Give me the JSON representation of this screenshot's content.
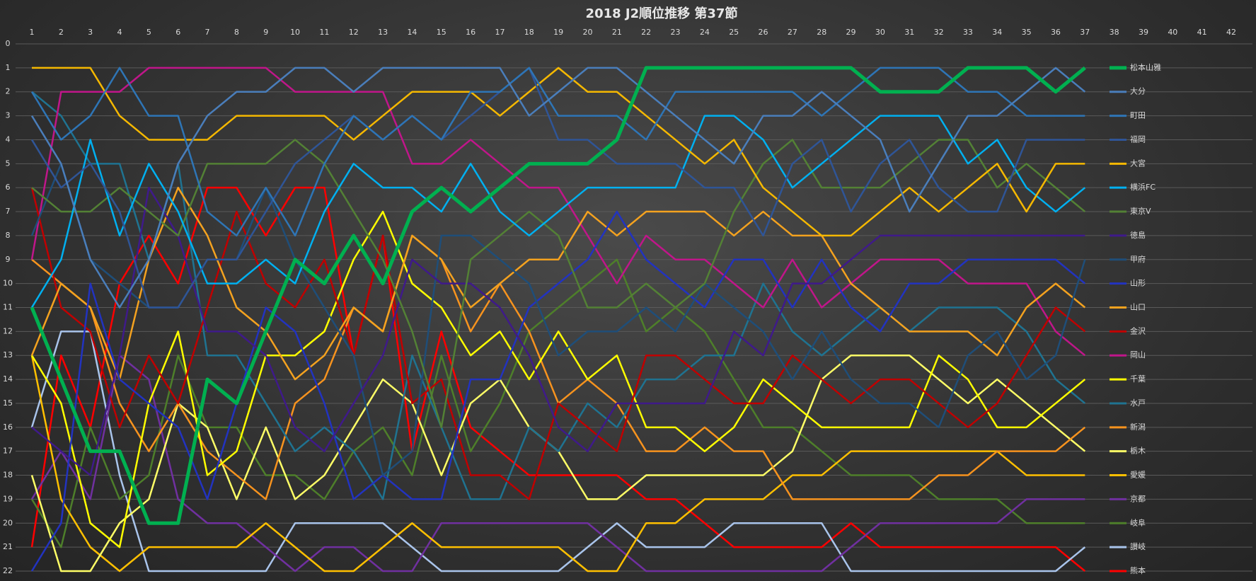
{
  "chart_data": {
    "type": "line",
    "title": "2018 J2順位推移 第37節",
    "x": [
      1,
      2,
      3,
      4,
      5,
      6,
      7,
      8,
      9,
      10,
      11,
      12,
      13,
      14,
      15,
      16,
      17,
      18,
      19,
      20,
      21,
      22,
      23,
      24,
      25,
      26,
      27,
      28,
      29,
      30,
      31,
      32,
      33,
      34,
      35,
      36,
      37
    ],
    "xlim": [
      1,
      42
    ],
    "xticks": [
      1,
      2,
      3,
      4,
      5,
      6,
      7,
      8,
      9,
      10,
      11,
      12,
      13,
      14,
      15,
      16,
      17,
      18,
      19,
      20,
      21,
      22,
      23,
      24,
      25,
      26,
      27,
      28,
      29,
      30,
      31,
      32,
      33,
      34,
      35,
      36,
      37,
      38,
      39,
      40,
      41,
      42
    ],
    "ylim": [
      0,
      22
    ],
    "yticks": [
      0,
      1,
      2,
      3,
      4,
      5,
      6,
      7,
      8,
      9,
      10,
      11,
      12,
      13,
      14,
      15,
      16,
      17,
      18,
      19,
      20,
      21,
      22
    ],
    "y_inverted": true,
    "grid": true,
    "series": [
      {
        "name": "松本山雅",
        "color": "#00b050",
        "width": 5,
        "values": [
          11,
          14,
          17,
          17,
          20,
          20,
          14,
          15,
          12,
          9,
          10,
          8,
          10,
          7,
          6,
          7,
          6,
          5,
          5,
          5,
          4,
          1,
          1,
          1,
          1,
          1,
          1,
          1,
          1,
          2,
          2,
          2,
          1,
          1,
          1,
          2,
          1
        ]
      },
      {
        "name": "大分",
        "color": "#4a7ebb",
        "width": 2.5,
        "values": [
          3,
          5,
          9,
          11,
          9,
          5,
          3,
          2,
          2,
          1,
          1,
          2,
          1,
          1,
          1,
          1,
          1,
          3,
          2,
          1,
          1,
          2,
          3,
          4,
          5,
          3,
          3,
          2,
          3,
          4,
          7,
          5,
          3,
          3,
          2,
          1,
          2
        ]
      },
      {
        "name": "町田",
        "color": "#2e75b6",
        "width": 2.5,
        "values": [
          2,
          4,
          3,
          1,
          3,
          3,
          7,
          8,
          6,
          8,
          5,
          3,
          4,
          3,
          4,
          2,
          2,
          1,
          3,
          3,
          3,
          4,
          2,
          2,
          2,
          2,
          2,
          3,
          2,
          1,
          1,
          1,
          2,
          2,
          3,
          3,
          3
        ]
      },
      {
        "name": "福岡",
        "color": "#2f5597",
        "width": 2.5,
        "values": [
          4,
          6,
          5,
          7,
          11,
          11,
          9,
          9,
          7,
          5,
          4,
          3,
          4,
          3,
          4,
          3,
          2,
          1,
          4,
          4,
          5,
          5,
          5,
          6,
          6,
          8,
          5,
          4,
          7,
          5,
          4,
          6,
          7,
          7,
          4,
          4,
          4
        ]
      },
      {
        "name": "大宮",
        "color": "#f5b800",
        "width": 2.5,
        "values": [
          1,
          1,
          1,
          3,
          4,
          4,
          4,
          3,
          3,
          3,
          3,
          4,
          3,
          2,
          2,
          2,
          3,
          2,
          1,
          2,
          2,
          3,
          4,
          5,
          4,
          6,
          7,
          8,
          8,
          7,
          6,
          7,
          6,
          5,
          7,
          5,
          5
        ]
      },
      {
        "name": "横浜FC",
        "color": "#00b0f0",
        "width": 2.5,
        "values": [
          11,
          9,
          4,
          8,
          5,
          7,
          10,
          10,
          9,
          10,
          7,
          5,
          6,
          6,
          7,
          5,
          7,
          8,
          7,
          6,
          6,
          6,
          6,
          3,
          3,
          4,
          6,
          5,
          4,
          3,
          3,
          3,
          5,
          4,
          6,
          7,
          6
        ]
      },
      {
        "name": "東京V",
        "color": "#538135",
        "width": 2.5,
        "values": [
          6,
          7,
          7,
          6,
          7,
          8,
          5,
          5,
          5,
          4,
          5,
          7,
          9,
          12,
          16,
          9,
          8,
          7,
          8,
          11,
          11,
          10,
          11,
          10,
          7,
          5,
          4,
          6,
          6,
          6,
          5,
          4,
          4,
          6,
          5,
          6,
          7
        ]
      },
      {
        "name": "徳島",
        "color": "#3f1a8a",
        "width": 2.5,
        "values": [
          16,
          17,
          18,
          13,
          6,
          8,
          12,
          12,
          13,
          16,
          17,
          15,
          13,
          9,
          10,
          10,
          11,
          13,
          16,
          17,
          15,
          15,
          15,
          15,
          12,
          13,
          10,
          10,
          9,
          8,
          8,
          8,
          8,
          8,
          8,
          8,
          8
        ]
      },
      {
        "name": "甲府",
        "color": "#1f4e79",
        "width": 2.5,
        "values": [
          8,
          5,
          9,
          10,
          11,
          11,
          9,
          9,
          6,
          9,
          11,
          13,
          18,
          17,
          8,
          8,
          9,
          10,
          13,
          12,
          12,
          11,
          12,
          10,
          11,
          12,
          14,
          12,
          14,
          15,
          15,
          16,
          13,
          12,
          14,
          13,
          9
        ]
      },
      {
        "name": "山形",
        "color": "#2233c0",
        "width": 2.5,
        "values": [
          22,
          20,
          10,
          14,
          15,
          16,
          19,
          15,
          11,
          12,
          15,
          19,
          18,
          19,
          19,
          14,
          14,
          11,
          10,
          9,
          7,
          9,
          10,
          11,
          9,
          9,
          11,
          9,
          11,
          12,
          10,
          10,
          9,
          9,
          9,
          9,
          10
        ]
      },
      {
        "name": "山口",
        "color": "#f4a21f",
        "width": 2.5,
        "values": [
          13,
          10,
          11,
          14,
          9,
          6,
          8,
          11,
          12,
          14,
          13,
          11,
          12,
          8,
          9,
          11,
          10,
          9,
          9,
          7,
          8,
          7,
          7,
          7,
          8,
          7,
          8,
          8,
          10,
          11,
          12,
          12,
          12,
          13,
          11,
          10,
          11
        ]
      },
      {
        "name": "金沢",
        "color": "#c00000",
        "width": 2.5,
        "values": [
          6,
          11,
          12,
          16,
          13,
          15,
          11,
          7,
          10,
          11,
          9,
          13,
          8,
          15,
          14,
          18,
          18,
          19,
          15,
          16,
          17,
          13,
          13,
          14,
          15,
          15,
          13,
          14,
          15,
          14,
          14,
          15,
          16,
          15,
          13,
          11,
          12
        ]
      },
      {
        "name": "岡山",
        "color": "#c0168a",
        "width": 2.5,
        "values": [
          9,
          2,
          2,
          2,
          1,
          1,
          1,
          1,
          1,
          2,
          2,
          2,
          2,
          5,
          5,
          4,
          5,
          6,
          6,
          8,
          10,
          8,
          9,
          9,
          10,
          11,
          9,
          11,
          10,
          9,
          9,
          9,
          10,
          10,
          10,
          12,
          13
        ]
      },
      {
        "name": "千葉",
        "color": "#ffff00",
        "width": 2.5,
        "values": [
          13,
          15,
          20,
          21,
          15,
          12,
          18,
          17,
          13,
          13,
          12,
          9,
          7,
          10,
          11,
          13,
          12,
          14,
          12,
          14,
          13,
          16,
          16,
          17,
          16,
          14,
          15,
          16,
          16,
          16,
          16,
          13,
          14,
          16,
          16,
          15,
          14
        ]
      },
      {
        "name": "水戸",
        "color": "#1f7391",
        "width": 2.5,
        "values": [
          2,
          3,
          5,
          5,
          9,
          5,
          13,
          13,
          15,
          17,
          16,
          17,
          19,
          13,
          16,
          19,
          19,
          16,
          17,
          15,
          16,
          14,
          14,
          13,
          13,
          10,
          12,
          13,
          12,
          11,
          12,
          11,
          11,
          11,
          12,
          14,
          15
        ]
      },
      {
        "name": "新潟",
        "color": "#f7931e",
        "width": 2.5,
        "values": [
          9,
          10,
          11,
          15,
          17,
          15,
          17,
          18,
          19,
          15,
          14,
          11,
          12,
          8,
          9,
          12,
          10,
          12,
          15,
          14,
          15,
          17,
          17,
          16,
          17,
          17,
          19,
          19,
          19,
          19,
          19,
          18,
          18,
          17,
          17,
          17,
          16
        ]
      },
      {
        "name": "栃木",
        "color": "#ffff66",
        "width": 2.5,
        "values": [
          18,
          22,
          22,
          20,
          19,
          15,
          16,
          19,
          16,
          19,
          18,
          16,
          14,
          15,
          18,
          15,
          14,
          16,
          17,
          19,
          19,
          18,
          18,
          18,
          18,
          18,
          17,
          14,
          13,
          13,
          13,
          14,
          15,
          14,
          15,
          16,
          17
        ]
      },
      {
        "name": "愛媛",
        "color": "#ffc000",
        "width": 2.5,
        "values": [
          13,
          19,
          21,
          22,
          21,
          21,
          21,
          21,
          20,
          21,
          22,
          22,
          21,
          20,
          21,
          21,
          21,
          21,
          21,
          22,
          22,
          20,
          20,
          19,
          19,
          19,
          18,
          18,
          17,
          17,
          17,
          17,
          17,
          17,
          18,
          18,
          18
        ]
      },
      {
        "name": "京都",
        "color": "#7030a0",
        "width": 2.5,
        "values": [
          19,
          17,
          19,
          13,
          14,
          19,
          20,
          20,
          21,
          22,
          21,
          21,
          22,
          22,
          20,
          20,
          20,
          20,
          20,
          20,
          21,
          22,
          22,
          22,
          22,
          22,
          22,
          22,
          21,
          20,
          20,
          20,
          20,
          20,
          19,
          19,
          19
        ]
      },
      {
        "name": "岐阜",
        "color": "#4e7f2a",
        "width": 2.5,
        "values": [
          19,
          21,
          16,
          19,
          18,
          13,
          16,
          16,
          18,
          18,
          19,
          17,
          16,
          18,
          13,
          17,
          15,
          12,
          11,
          10,
          9,
          12,
          11,
          12,
          14,
          16,
          16,
          17,
          18,
          18,
          18,
          19,
          19,
          19,
          20,
          20,
          20
        ]
      },
      {
        "name": "讃岐",
        "color": "#a9c4eb",
        "width": 2.5,
        "values": [
          16,
          12,
          12,
          18,
          22,
          22,
          22,
          22,
          22,
          20,
          20,
          20,
          20,
          21,
          22,
          22,
          22,
          22,
          22,
          21,
          20,
          21,
          21,
          21,
          20,
          20,
          20,
          20,
          22,
          22,
          22,
          22,
          22,
          22,
          22,
          22,
          21
        ]
      },
      {
        "name": "熊本",
        "color": "#ff0000",
        "width": 2.5,
        "values": [
          21,
          13,
          16,
          10,
          8,
          10,
          6,
          6,
          8,
          6,
          6,
          13,
          8,
          17,
          12,
          16,
          17,
          18,
          18,
          18,
          18,
          19,
          19,
          20,
          21,
          21,
          21,
          21,
          20,
          21,
          21,
          21,
          21,
          21,
          21,
          21,
          22
        ]
      }
    ]
  }
}
